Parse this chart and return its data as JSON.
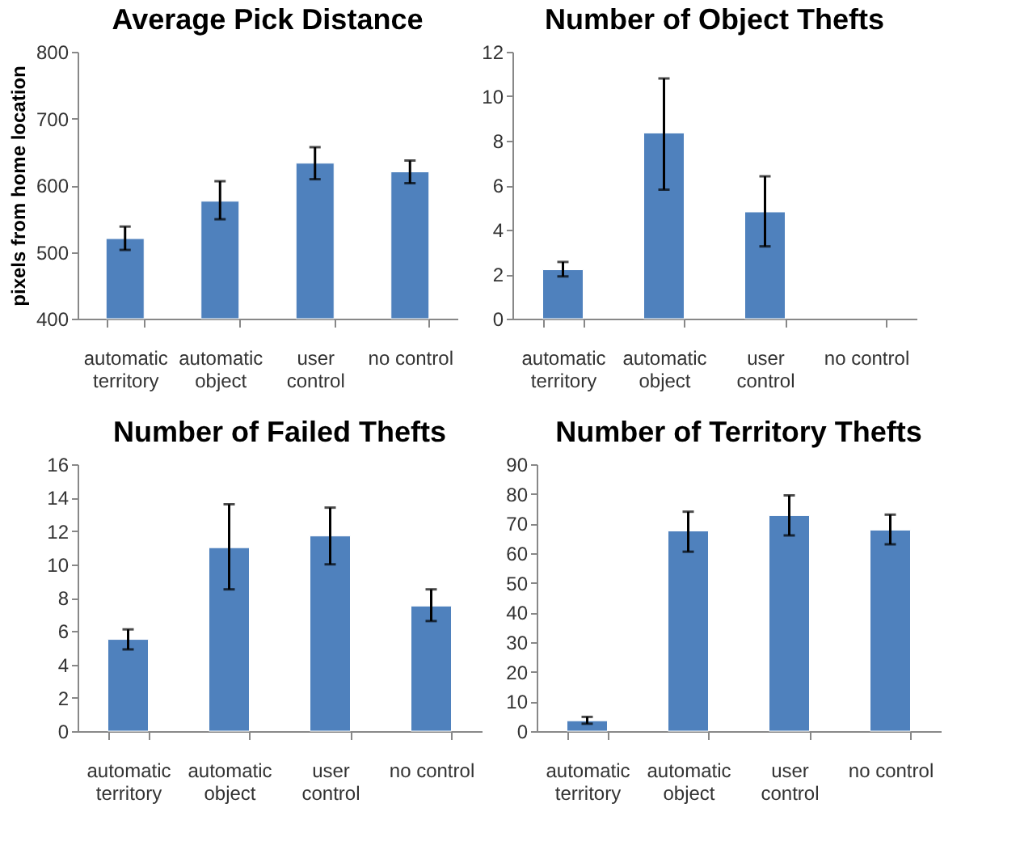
{
  "chart_data": [
    {
      "type": "bar",
      "title": "Average Pick Distance",
      "ylabel": "pixels from home location",
      "categories": [
        "automatic territory",
        "automatic object",
        "user control",
        "no control"
      ],
      "values": [
        520,
        576,
        633,
        620
      ],
      "errors": [
        [
          503,
          538
        ],
        [
          549,
          606
        ],
        [
          609,
          657
        ],
        [
          603,
          637
        ]
      ],
      "color": "#4f81bd",
      "ylim": [
        400,
        800
      ],
      "yticks": [
        400,
        500,
        600,
        700,
        800
      ],
      "grid": false
    },
    {
      "type": "bar",
      "title": "Number of Object Thefts",
      "categories": [
        "automatic territory",
        "automatic object",
        "user control",
        "no control"
      ],
      "values": [
        2.2,
        8.35,
        4.8,
        null
      ],
      "errors": [
        [
          1.9,
          2.55
        ],
        [
          5.8,
          10.8
        ],
        [
          3.25,
          6.4
        ],
        null
      ],
      "color": "#4f81bd",
      "ylim": [
        0,
        12
      ],
      "yticks": [
        0,
        2,
        4,
        6,
        8,
        10,
        12
      ],
      "grid": false
    },
    {
      "type": "bar",
      "title": "Number of Failed Thefts",
      "categories": [
        "automatic territory",
        "automatic object",
        "user control",
        "no control"
      ],
      "values": [
        5.5,
        11.0,
        11.7,
        7.5
      ],
      "errors": [
        [
          4.9,
          6.1
        ],
        [
          8.5,
          13.6
        ],
        [
          10.0,
          13.4
        ],
        [
          6.6,
          8.5
        ]
      ],
      "color": "#4f81bd",
      "ylim": [
        0,
        16
      ],
      "yticks": [
        0,
        2,
        4,
        6,
        8,
        10,
        12,
        14,
        16
      ],
      "grid": false
    },
    {
      "type": "bar",
      "title": "Number of Territory Thefts",
      "categories": [
        "automatic territory",
        "automatic object",
        "user control",
        "no control"
      ],
      "values": [
        3.5,
        67.5,
        72.7,
        67.8
      ],
      "errors": [
        [
          2.5,
          4.8
        ],
        [
          60.5,
          74
        ],
        [
          66,
          79.5
        ],
        [
          63,
          73
        ]
      ],
      "color": "#4f81bd",
      "ylim": [
        0,
        90
      ],
      "yticks": [
        0,
        10,
        20,
        30,
        40,
        50,
        60,
        70,
        80,
        90
      ],
      "grid": false
    }
  ]
}
